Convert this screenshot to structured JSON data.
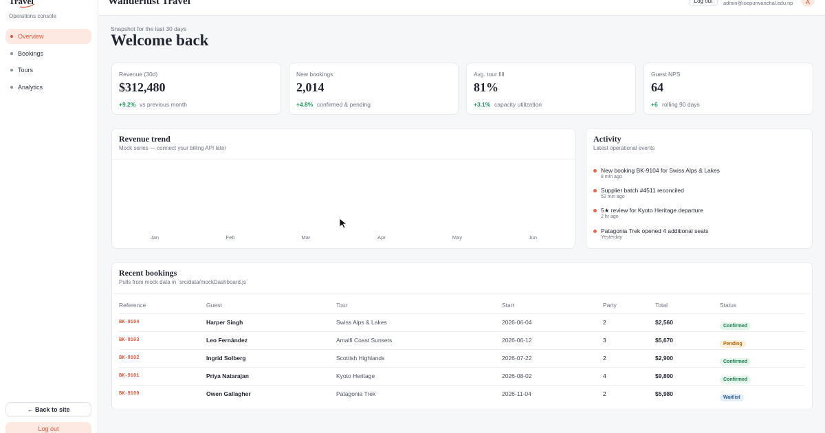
{
  "sidebar": {
    "logo": "Travel",
    "subtitle": "Operations console",
    "nav": [
      "Overview",
      "Bookings",
      "Tours",
      "Analytics"
    ],
    "back": "← Back to site",
    "logout": "Log out"
  },
  "header": {
    "title": "Wanderlust Travel",
    "logout": "Log out",
    "email": "admin@ioepurwanchal.edu.np",
    "avatar": "A"
  },
  "intro": {
    "kicker": "Snapshot for the last 30 days",
    "title": "Welcome back"
  },
  "kpis": [
    {
      "label": "Revenue (30d)",
      "value": "$312,480",
      "delta": "+9.2%",
      "note": "vs previous month"
    },
    {
      "label": "New bookings",
      "value": "2,014",
      "delta": "+4.8%",
      "note": "confirmed & pending"
    },
    {
      "label": "Avg. tour fill",
      "value": "81%",
      "delta": "+3.1%",
      "note": "capacity utilization"
    },
    {
      "label": "Guest NPS",
      "value": "64",
      "delta": "+6",
      "note": "rolling 90 days"
    }
  ],
  "revenue_trend": {
    "title": "Revenue trend",
    "subtitle": "Mock series — connect your billing API later",
    "months": [
      "Jan",
      "Feb",
      "Mar",
      "Apr",
      "May",
      "Jun"
    ]
  },
  "activity": {
    "title": "Activity",
    "subtitle": "Latest operational events",
    "items": [
      {
        "text": "New booking BK-9104 for Swiss Alps & Lakes",
        "time": "8 min ago"
      },
      {
        "text": "Supplier batch #4511 reconciled",
        "time": "52 min ago"
      },
      {
        "text": "5★ review for Kyoto Heritage departure",
        "time": "2 hr ago"
      },
      {
        "text": "Patagonia Trek opened 4 additional seats",
        "time": "Yesterday"
      }
    ]
  },
  "bookings": {
    "title": "Recent bookings",
    "subtitle": "Pulls from mock data in `src/data/mockDashboard.js`",
    "columns": [
      "Reference",
      "Guest",
      "Tour",
      "Start",
      "Party",
      "Total",
      "Status"
    ],
    "rows": [
      [
        "BK-9104",
        "Harper Singh",
        "Swiss Alps & Lakes",
        "2026-06-04",
        "2",
        "$2,560",
        "Confirmed"
      ],
      [
        "BK-9103",
        "Leo Fernández",
        "Amalfi Coast Sunsets",
        "2026-06-12",
        "3",
        "$5,670",
        "Pending"
      ],
      [
        "BK-9102",
        "Ingrid Solberg",
        "Scottish Highlands",
        "2026-07-22",
        "2",
        "$2,900",
        "Confirmed"
      ],
      [
        "BK-9101",
        "Priya Natarajan",
        "Kyoto Heritage",
        "2026-08-02",
        "4",
        "$9,800",
        "Confirmed"
      ],
      [
        "BK-9100",
        "Owen Gallagher",
        "Patagonia Trek",
        "2026-11-04",
        "2",
        "$5,980",
        "Waitlist"
      ]
    ]
  }
}
